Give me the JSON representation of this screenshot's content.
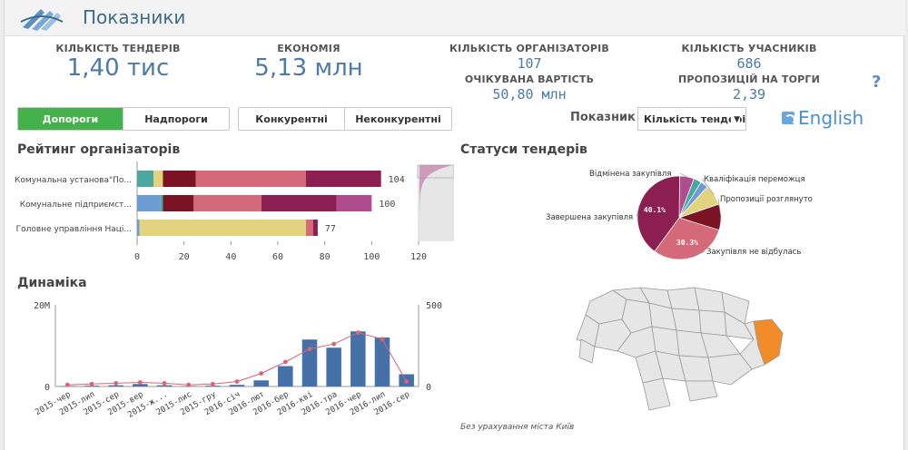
{
  "header": {
    "title": "Показники",
    "logo_icon": "logo-wave-icon"
  },
  "kpis": {
    "tenders": {
      "label": "КІЛЬКІСТЬ ТЕНДЕРІВ",
      "value": "1,40 тис"
    },
    "economy": {
      "label": "ЕКОНОМІЯ",
      "value": "5,13 млн"
    },
    "organizers": {
      "label": "КІЛЬКІСТЬ ОРГАНІЗАТОРІВ",
      "value": "107"
    },
    "expected": {
      "label": "ОЧІКУВАНА ВАРТІСТЬ",
      "value": "50,80 млн"
    },
    "participants": {
      "label": "КІЛЬКІСТЬ УЧАСНИКІВ",
      "value": "686"
    },
    "offers": {
      "label": "ПРОПОЗИЦІЙ НА ТОРГИ",
      "value": "2,39"
    }
  },
  "help": {
    "label": "?"
  },
  "filters": {
    "threshold": [
      {
        "label": "Допороги",
        "active": true
      },
      {
        "label": "Надпороги",
        "active": false
      }
    ],
    "competition": [
      {
        "label": "Конкурентні",
        "active": false
      },
      {
        "label": "Неконкурентні",
        "active": false
      }
    ]
  },
  "indicator": {
    "label": "Показник",
    "selected": "Кількість тендерів"
  },
  "language": {
    "label": "English"
  },
  "rating": {
    "title": "Рейтинг організаторів",
    "chart_data": {
      "type": "bar",
      "orientation": "horizontal",
      "stacked": true,
      "categories": [
        "Комунальна установа\"По...",
        "Комунальне підприємст...",
        "Головне управління Наці..."
      ],
      "totals": [
        104,
        100,
        77
      ],
      "segments": [
        [
          {
            "v": 7,
            "color": "#4aa89e"
          },
          {
            "v": 4,
            "color": "#e3d27e"
          },
          {
            "v": 14,
            "color": "#7a1323"
          },
          {
            "v": 47,
            "color": "#d4697a"
          },
          {
            "v": 32,
            "color": "#8b1f52"
          }
        ],
        [
          {
            "v": 10,
            "color": "#6d9bd4"
          },
          {
            "v": 1,
            "color": "#4aa89e"
          },
          {
            "v": 13,
            "color": "#7a1323"
          },
          {
            "v": 29,
            "color": "#d4697a"
          },
          {
            "v": 32,
            "color": "#8b1f52"
          },
          {
            "v": 15,
            "color": "#b04d8e"
          }
        ],
        [
          {
            "v": 1,
            "color": "#6d9bd4"
          },
          {
            "v": 71,
            "color": "#e3d27e"
          },
          {
            "v": 3,
            "color": "#d4697a"
          },
          {
            "v": 2,
            "color": "#8b1f52"
          }
        ]
      ],
      "x_ticks": [
        0,
        20,
        40,
        60,
        80,
        100,
        120
      ],
      "xlim": [
        0,
        120
      ]
    }
  },
  "statuses": {
    "title": "Статуси тендерів",
    "chart_data": {
      "type": "pie",
      "donut": true,
      "slices": [
        {
          "label": "Завершена закупівля",
          "value": 40.1,
          "color": "#8b1f52",
          "show_pct": "40.1%"
        },
        {
          "label": "Закупівля не відбулась",
          "value": 30.3,
          "color": "#d4697a",
          "show_pct": "30.3%"
        },
        {
          "label": "Пропозиції розглянуто",
          "value": 10,
          "color": "#7a1323",
          "show_pct": ""
        },
        {
          "label": "Кваліфікація переможця",
          "value": 8,
          "color": "#e3d27e",
          "show_pct": ""
        },
        {
          "label": "",
          "value": 3,
          "color": "#4aa89e",
          "show_pct": ""
        },
        {
          "label": "",
          "value": 3,
          "color": "#6d9bd4",
          "show_pct": ""
        },
        {
          "label": "Відмінена закупівля",
          "value": 5.6,
          "color": "#b04d8e",
          "show_pct": ""
        }
      ]
    }
  },
  "dynamics": {
    "title": "Динаміка",
    "chart_data": {
      "type": "bar",
      "combo": "bar+line",
      "categories": [
        "2015-чер",
        "2015-лип",
        "2015-сер",
        "2015-вер",
        "2015-ж...",
        "2015-лис",
        "2015-гру",
        "2016-січ",
        "2016-лют",
        "2016-бер",
        "2016-кві",
        "2016-тра",
        "2016-чер",
        "2016-лип",
        "2016-сер"
      ],
      "bars": [
        0.1,
        0.2,
        0.3,
        0.6,
        0.3,
        0.1,
        0.2,
        0.4,
        1.5,
        5,
        11.5,
        9.5,
        13.5,
        12,
        3
      ],
      "line": [
        10,
        15,
        20,
        25,
        20,
        10,
        15,
        30,
        80,
        150,
        230,
        260,
        330,
        290,
        30
      ],
      "y_left_label": "20M",
      "y_left_zero": "0",
      "y_left_max": 20,
      "y_right_label": "500",
      "y_right_zero": "0",
      "y_right_max": 500,
      "bar_color": "#4571a8",
      "line_color": "#d96474"
    }
  },
  "map": {
    "footnote": "Без урахування міста Київ",
    "highlight_color": "#f28c28",
    "region_color": "#e6e6e6"
  }
}
